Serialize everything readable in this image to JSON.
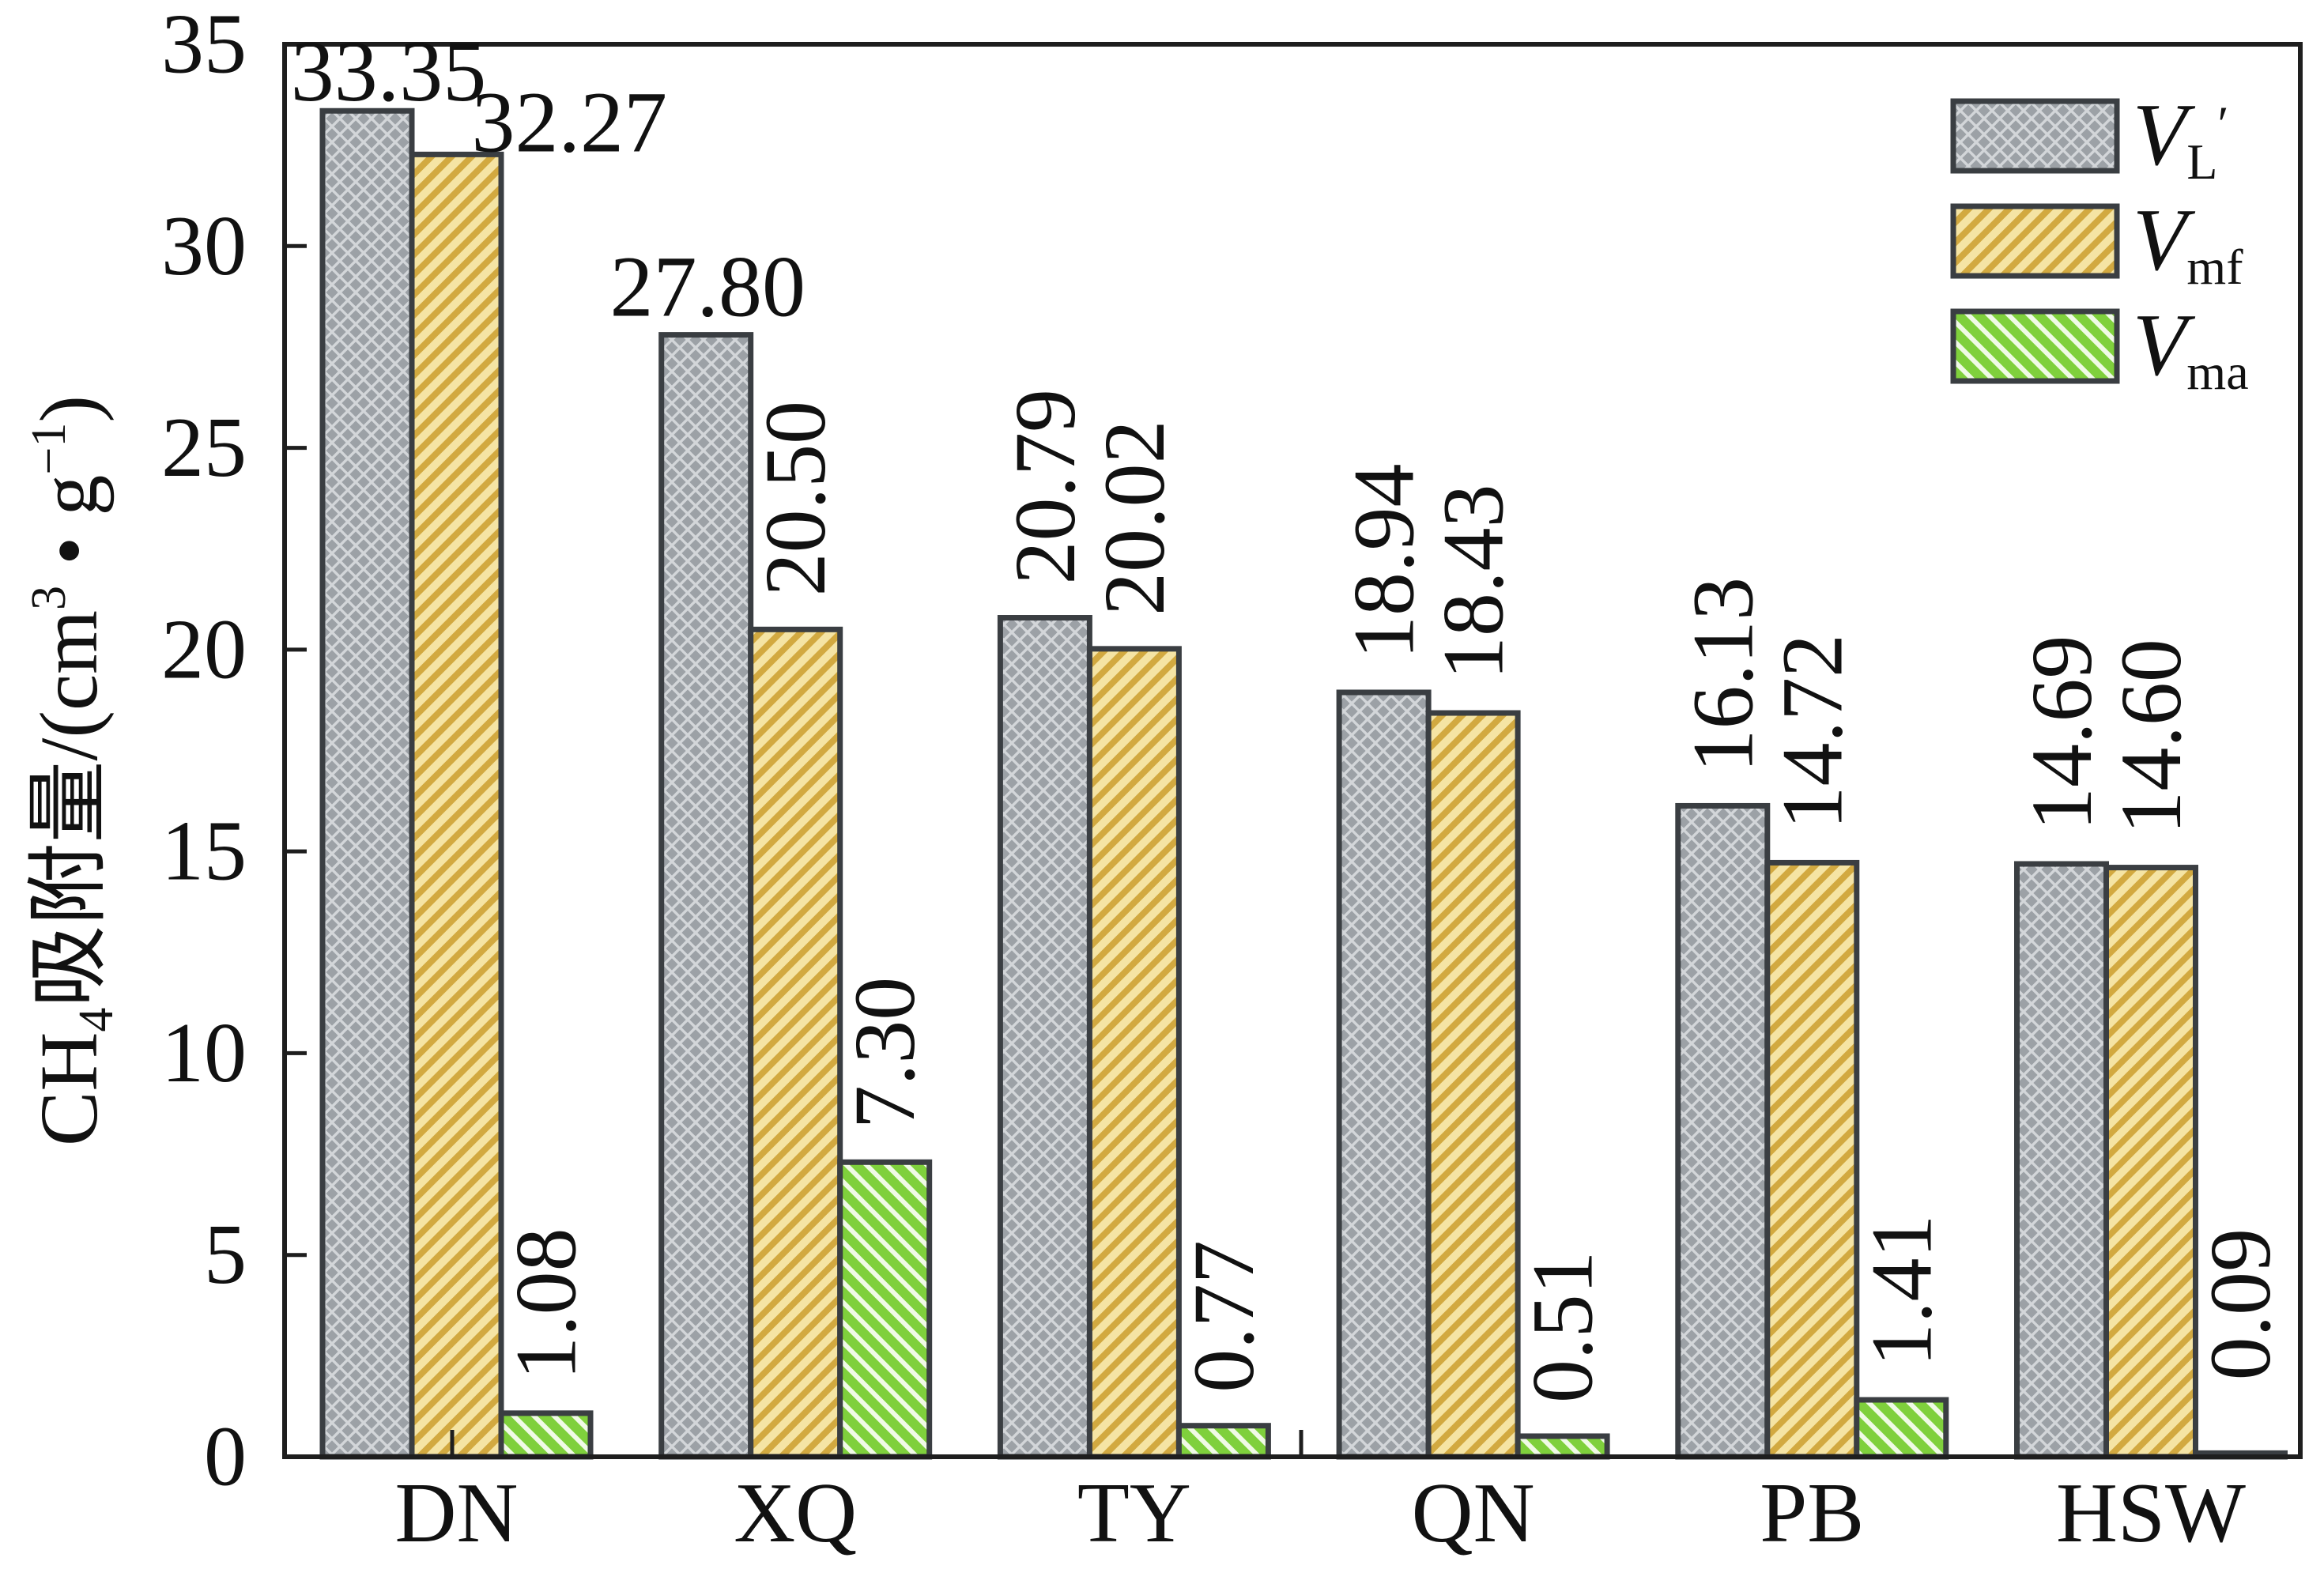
{
  "chart_data": {
    "type": "bar",
    "categories": [
      "DN",
      "XQ",
      "TY",
      "QN",
      "PB",
      "HSW"
    ],
    "series": [
      {
        "name": {
          "main": "V",
          "sub": "L",
          "sup": "′"
        },
        "values": [
          33.35,
          27.8,
          20.79,
          18.94,
          16.13,
          14.69
        ],
        "labels": [
          "33.35",
          "27.80",
          "20.79",
          "18.94",
          "16.13",
          "14.69"
        ],
        "color": "#9ca1a6",
        "hatch_color": "#d3d6d9",
        "pattern": "crosshatch"
      },
      {
        "name": {
          "main": "V",
          "sub": "mf"
        },
        "values": [
          32.27,
          20.5,
          20.02,
          18.43,
          14.72,
          14.6
        ],
        "labels": [
          "32.27",
          "20.50",
          "20.02",
          "18.43",
          "14.72",
          "14.60"
        ],
        "color": "#f5e4a4",
        "hatch_color": "#d2a940",
        "pattern": "forward-diagonal"
      },
      {
        "name": {
          "main": "V",
          "sub": "ma"
        },
        "values": [
          1.08,
          7.3,
          0.77,
          0.51,
          1.41,
          0.09
        ],
        "labels": [
          "1.08",
          "7.30",
          "0.77",
          "0.51",
          "1.41",
          "0.09"
        ],
        "color": "#7fd03c",
        "hatch_color": "#f0fae6",
        "pattern": "backward-diagonal"
      }
    ],
    "ylabel": [
      {
        "text": "CH"
      },
      {
        "text": "4",
        "role": "sub"
      },
      {
        "text": "吸附量/(cm"
      },
      {
        "text": "3",
        "role": "sup"
      },
      {
        "text": " • g"
      },
      {
        "text": "−1",
        "role": "sup"
      },
      {
        "text": ")"
      }
    ],
    "ylim": [
      0,
      35
    ],
    "yticks": [
      0,
      5,
      10,
      15,
      20,
      25,
      30,
      35
    ],
    "legend_position": "top-right",
    "grid": false,
    "bar_outline_color": "#3a3e42",
    "axis_color": "#1e1e1e"
  }
}
